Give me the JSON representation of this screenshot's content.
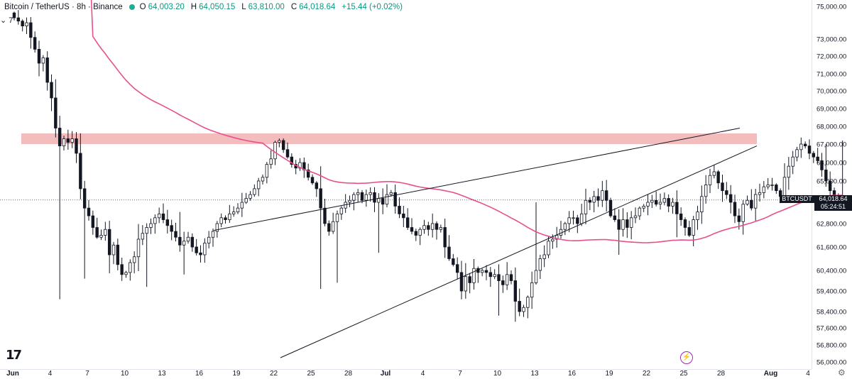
{
  "header": {
    "title": "Bitcoin / TetherUS · 8h · Binance",
    "open_label": "O",
    "open": "64,003.20",
    "high_label": "H",
    "high": "64,050.15",
    "low_label": "L",
    "low": "63,810.00",
    "close_label": "C",
    "close": "64,018.64",
    "change": "+15.44 (+0.02%)"
  },
  "collapse_indicator": "7",
  "symbol_badge": "BTCUSDT",
  "last_price": "64,018.64",
  "countdown": "05:24:51",
  "colors": {
    "up": "#089981",
    "down": "#131722",
    "ma": "#e8508c",
    "resistance_zone": "#f2b6b6",
    "trendline": "#131722",
    "flash": "#9c27b0"
  },
  "icons": {
    "logo": "tradingview-logo-icon",
    "flash": "flash-icon",
    "settings": "gear-icon"
  },
  "chart_data": {
    "type": "candlestick",
    "title": "Bitcoin / TetherUS · 8h · Binance",
    "ylim": [
      56000,
      75400
    ],
    "y_ticks": [
      {
        "v": 75000,
        "t": "75,000.00"
      },
      {
        "v": 73000,
        "t": "73,000.00"
      },
      {
        "v": 72000,
        "t": "72,000.00"
      },
      {
        "v": 71000,
        "t": "71,000.00"
      },
      {
        "v": 70000,
        "t": "70,000.00"
      },
      {
        "v": 69000,
        "t": "69,000.00"
      },
      {
        "v": 68000,
        "t": "68,000.00"
      },
      {
        "v": 67000,
        "t": "67,000.00"
      },
      {
        "v": 66000,
        "t": "66,000.00"
      },
      {
        "v": 65000,
        "t": "65,000.00"
      },
      {
        "v": 62800,
        "t": "62,800.00"
      },
      {
        "v": 61600,
        "t": "61,600.00"
      },
      {
        "v": 60400,
        "t": "60,400.00"
      },
      {
        "v": 59400,
        "t": "59,400.00"
      },
      {
        "v": 58400,
        "t": "58,400.00"
      },
      {
        "v": 57600,
        "t": "57,600.00"
      },
      {
        "v": 56800,
        "t": "56,800.00"
      },
      {
        "v": 56000,
        "t": "56,000.00"
      }
    ],
    "x_ticks": [
      {
        "d": 0,
        "t": "Jun",
        "bold": true
      },
      {
        "d": 3,
        "t": "4"
      },
      {
        "d": 6,
        "t": "7"
      },
      {
        "d": 9,
        "t": "10"
      },
      {
        "d": 12,
        "t": "13"
      },
      {
        "d": 15,
        "t": "16"
      },
      {
        "d": 18,
        "t": "19"
      },
      {
        "d": 21,
        "t": "22"
      },
      {
        "d": 24,
        "t": "25"
      },
      {
        "d": 27,
        "t": "28"
      },
      {
        "d": 30,
        "t": "Jul",
        "bold": true
      },
      {
        "d": 33,
        "t": "4"
      },
      {
        "d": 36,
        "t": "7"
      },
      {
        "d": 39,
        "t": "10"
      },
      {
        "d": 42,
        "t": "13"
      },
      {
        "d": 45,
        "t": "16"
      },
      {
        "d": 48,
        "t": "19"
      },
      {
        "d": 51,
        "t": "22"
      },
      {
        "d": 54,
        "t": "25"
      },
      {
        "d": 57,
        "t": "28"
      },
      {
        "d": 61,
        "t": "Aug",
        "bold": true
      },
      {
        "d": 64,
        "t": "4"
      }
    ],
    "x_unit": "days since Jun 1 (8h candles)",
    "closes": [
      74300,
      74100,
      73800,
      74000,
      73100,
      72400,
      71600,
      71900,
      70500,
      69600,
      67900,
      66900,
      67300,
      67100,
      67300,
      66500,
      64600,
      63600,
      63200,
      62600,
      62100,
      62200,
      62500,
      61200,
      61700,
      60700,
      60200,
      60300,
      60800,
      61100,
      62000,
      62300,
      62600,
      62800,
      63100,
      63300,
      63000,
      62700,
      62400,
      62100,
      61700,
      61900,
      62100,
      61600,
      61300,
      61200,
      61800,
      62100,
      62400,
      62800,
      63100,
      63000,
      63300,
      63400,
      63600,
      63900,
      64100,
      64300,
      64600,
      65000,
      65200,
      65900,
      66200,
      67100,
      67200,
      66700,
      66300,
      65900,
      65700,
      66000,
      65600,
      65200,
      64900,
      64600,
      63600,
      62800,
      62400,
      62900,
      63300,
      63600,
      63900,
      64000,
      64300,
      64400,
      64000,
      64300,
      64400,
      63900,
      64100,
      63800,
      64300,
      64400,
      63700,
      63300,
      63100,
      62600,
      62400,
      62200,
      62500,
      62700,
      62500,
      62800,
      62500,
      62600,
      61600,
      61000,
      60700,
      60300,
      59400,
      60100,
      59800,
      60500,
      60300,
      60400,
      60300,
      60100,
      60200,
      59900,
      59700,
      60200,
      59900,
      58900,
      58400,
      58600,
      59100,
      59800,
      60400,
      61000,
      61200,
      61900,
      62000,
      62200,
      62500,
      62800,
      63100,
      63100,
      62800,
      63300,
      64000,
      63900,
      64200,
      64000,
      64500,
      64000,
      63200,
      63000,
      62500,
      63000,
      62600,
      63100,
      63200,
      63600,
      63700,
      63900,
      64000,
      63800,
      63900,
      64100,
      63700,
      63900,
      63300,
      63000,
      62600,
      62200,
      63000,
      63400,
      64200,
      64800,
      65300,
      65500,
      64900,
      64500,
      64300,
      63900,
      63200,
      62900,
      63800,
      64000,
      63600,
      64300,
      64400,
      64700,
      64800,
      64800,
      64500,
      64200,
      65200,
      65800,
      66300,
      66700,
      67000,
      66900,
      66500,
      66300,
      66100,
      65600,
      65000,
      64500,
      64100,
      64000,
      64018.64
    ],
    "series": [
      {
        "name": "",
        "values": []
      }
    ]
  }
}
